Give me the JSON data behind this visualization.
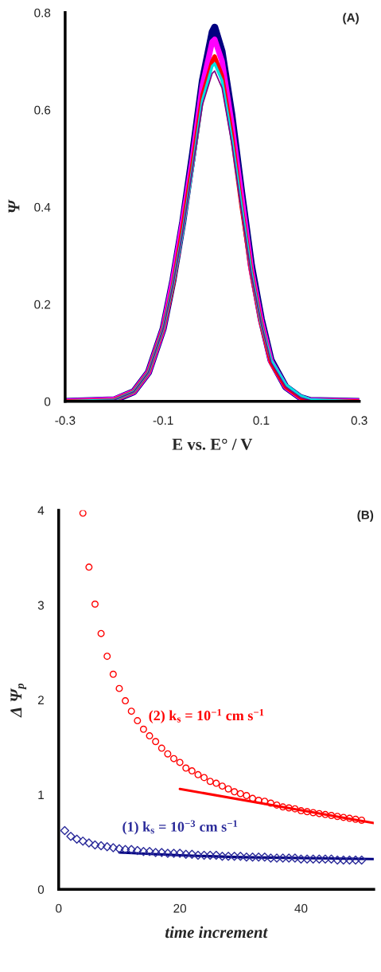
{
  "chart_data": [
    {
      "type": "line",
      "title": "(A)",
      "xlabel": "E vs. E° / V",
      "ylabel": "Ψ",
      "xlim": [
        -0.3,
        0.3
      ],
      "xticks": [
        -0.3,
        -0.1,
        0.1,
        0.3
      ],
      "ylim": [
        0,
        0.8
      ],
      "yticks": [
        0,
        0.2,
        0.4,
        0.6,
        0.8
      ],
      "grid": false,
      "legend": false,
      "marker": "none",
      "line_style": "solid",
      "x": [
        -0.3,
        -0.2,
        -0.16,
        -0.13,
        -0.1,
        -0.08,
        -0.06,
        -0.04,
        -0.02,
        0,
        0.005,
        0.02,
        0.04,
        0.06,
        0.08,
        0.1,
        0.12,
        0.15,
        0.18,
        0.2,
        0.3
      ],
      "series": [
        {
          "color": "#000080",
          "values": [
            0,
            0.003,
            0.02,
            0.06,
            0.15,
            0.25,
            0.37,
            0.51,
            0.66,
            0.76,
            0.77,
            0.72,
            0.59,
            0.43,
            0.28,
            0.17,
            0.085,
            0.03,
            0.008,
            0.002,
            0
          ]
        },
        {
          "color": "#ff00ff",
          "values": [
            0,
            0.004,
            0.02,
            0.06,
            0.15,
            0.25,
            0.37,
            0.5,
            0.65,
            0.74,
            0.745,
            0.7,
            0.57,
            0.42,
            0.27,
            0.165,
            0.082,
            0.03,
            0.008,
            0.002,
            0
          ]
        },
        {
          "color": "#ff0000",
          "values": [
            0,
            0.003,
            0.02,
            0.06,
            0.15,
            0.24,
            0.36,
            0.49,
            0.63,
            0.7,
            0.71,
            0.67,
            0.55,
            0.4,
            0.265,
            0.16,
            0.08,
            0.03,
            0.008,
            0.002,
            0
          ]
        },
        {
          "color": "#00e0e0",
          "values": [
            0,
            0.003,
            0.02,
            0.06,
            0.15,
            0.24,
            0.35,
            0.48,
            0.62,
            0.69,
            0.695,
            0.66,
            0.54,
            0.4,
            0.265,
            0.16,
            0.085,
            0.035,
            0.012,
            0.004,
            0
          ]
        },
        {
          "color": "#800080",
          "values": [
            0,
            0.003,
            0.02,
            0.06,
            0.15,
            0.24,
            0.35,
            0.48,
            0.61,
            0.675,
            0.68,
            0.645,
            0.53,
            0.39,
            0.26,
            0.16,
            0.08,
            0.03,
            0.008,
            0.002,
            0
          ]
        }
      ]
    },
    {
      "type": "scatter",
      "title": "(B)",
      "xlabel": "time increment",
      "ylabel": "Δ Ψ$_{p}$",
      "xlim": [
        0,
        52
      ],
      "xticks": [
        0,
        20,
        40
      ],
      "ylim": [
        0,
        4
      ],
      "yticks": [
        0,
        1,
        2,
        3,
        4
      ],
      "grid": false,
      "legend": false,
      "series": [
        {
          "name": "(2) k$_{s}$ = 10$^{−1}$ cm s$^{−1}$",
          "color": "#ff0000",
          "marker": "circle",
          "x": [
            4,
            5,
            6,
            7,
            8,
            9,
            10,
            11,
            12,
            13,
            14,
            15,
            16,
            17,
            18,
            19,
            20,
            21,
            22,
            23,
            24,
            25,
            26,
            27,
            28,
            29,
            30,
            31,
            32,
            33,
            34,
            35,
            36,
            37,
            38,
            39,
            40,
            41,
            42,
            43,
            44,
            45,
            46,
            47,
            48,
            49,
            50
          ],
          "values": [
            3.97,
            3.4,
            3.01,
            2.7,
            2.46,
            2.27,
            2.12,
            1.99,
            1.88,
            1.78,
            1.69,
            1.62,
            1.56,
            1.49,
            1.43,
            1.38,
            1.34,
            1.28,
            1.25,
            1.21,
            1.18,
            1.14,
            1.12,
            1.09,
            1.06,
            1.03,
            1.01,
            0.99,
            0.96,
            0.94,
            0.93,
            0.91,
            0.89,
            0.87,
            0.86,
            0.85,
            0.83,
            0.82,
            0.81,
            0.8,
            0.79,
            0.78,
            0.77,
            0.76,
            0.75,
            0.74,
            0.73
          ]
        },
        {
          "name": "(1) k$_{s}$ = 10$^{−3}$ cm s$^{−1}$",
          "color": "#2b2b9a",
          "marker": "diamond",
          "x": [
            1,
            2,
            3,
            4,
            5,
            6,
            7,
            8,
            9,
            10,
            11,
            12,
            13,
            14,
            15,
            16,
            17,
            18,
            19,
            20,
            21,
            22,
            23,
            24,
            25,
            26,
            27,
            28,
            29,
            30,
            31,
            32,
            33,
            34,
            35,
            36,
            37,
            38,
            39,
            40,
            41,
            42,
            43,
            44,
            45,
            46,
            47,
            48,
            49,
            50
          ],
          "values": [
            0.62,
            0.56,
            0.53,
            0.51,
            0.49,
            0.47,
            0.46,
            0.45,
            0.44,
            0.43,
            0.42,
            0.42,
            0.41,
            0.4,
            0.4,
            0.39,
            0.39,
            0.38,
            0.38,
            0.38,
            0.37,
            0.37,
            0.36,
            0.36,
            0.36,
            0.36,
            0.35,
            0.35,
            0.35,
            0.35,
            0.34,
            0.34,
            0.34,
            0.34,
            0.33,
            0.33,
            0.33,
            0.33,
            0.33,
            0.32,
            0.32,
            0.32,
            0.32,
            0.32,
            0.32,
            0.31,
            0.31,
            0.31,
            0.31,
            0.31
          ]
        },
        {
          "type": "line",
          "color": "#ff0000",
          "line_style": "solid",
          "x": [
            20,
            52
          ],
          "values": [
            1.06,
            0.7
          ]
        },
        {
          "type": "line",
          "color": "#000080",
          "line_style": "solid",
          "x": [
            10,
            20,
            30,
            40,
            52
          ],
          "values": [
            0.39,
            0.36,
            0.34,
            0.33,
            0.32
          ]
        }
      ]
    }
  ]
}
